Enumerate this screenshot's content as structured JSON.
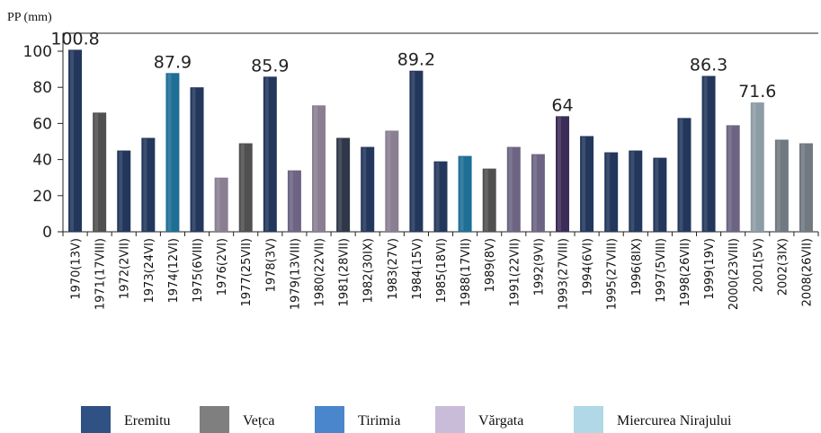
{
  "chart_data": {
    "type": "bar",
    "ylabel": "PP (mm)",
    "ylim": [
      0,
      100
    ],
    "yticks": [
      "0",
      "20",
      "40",
      "60",
      "80",
      "100"
    ],
    "categories": [
      "1970(13V)",
      "1971(17VIII)",
      "1972(2VII)",
      "1973(24VI)",
      "1974(12VI)",
      "1975(6VIII)",
      "1976(2VI)",
      "1977(25VII)",
      "1978(3V)",
      "1979(13VIII)",
      "1980(22VII)",
      "1981(28VII)",
      "1982(30IX)",
      "1983(27V)",
      "1984(15V)",
      "1985(18VI)",
      "1988(17VII)",
      "1989(8V)",
      "1991(22VII)",
      "1992(9VI)",
      "1993(27VIII)",
      "1994(6VI)",
      "1995(27VIII)",
      "1996(8IX)",
      "1997(5VIII)",
      "1998(26VII)",
      "1999(19V)",
      "2000(23VIII)",
      "2001(5V)",
      "2002(3IX)",
      "2008(26VII)"
    ],
    "values": [
      100.8,
      66,
      45,
      52,
      87.9,
      80,
      30,
      49,
      85.9,
      34,
      70,
      52,
      47,
      56,
      89.2,
      39,
      42,
      35,
      47,
      43,
      64,
      53,
      44,
      45,
      41,
      63,
      86.3,
      59,
      71.6,
      51,
      49
    ],
    "bar_colors": [
      "#23375c",
      "#505050",
      "#23375c",
      "#23375c",
      "#1e6e96",
      "#23375c",
      "#8a7e92",
      "#505050",
      "#23375c",
      "#6c6482",
      "#8a7e92",
      "#2f3848",
      "#23375c",
      "#8a7e92",
      "#23375c",
      "#23375c",
      "#1e6e96",
      "#505050",
      "#6c6482",
      "#6c6482",
      "#3c2c58",
      "#23375c",
      "#23375c",
      "#23375c",
      "#23375c",
      "#23375c",
      "#23375c",
      "#6c6482",
      "#8c9ca4",
      "#707880",
      "#707880"
    ],
    "data_labels": [
      {
        "index": 0,
        "text": "100.8"
      },
      {
        "index": 4,
        "text": "87.9"
      },
      {
        "index": 8,
        "text": "85.9"
      },
      {
        "index": 14,
        "text": "89.2"
      },
      {
        "index": 20,
        "text": "64"
      },
      {
        "index": 26,
        "text": "86.3"
      },
      {
        "index": 28,
        "text": "71.6"
      }
    ],
    "legend": {
      "position": "bottom",
      "entries": [
        {
          "name": "Eremitu",
          "color": "#2f5183"
        },
        {
          "name": "Vețca",
          "color": "#7f7f7f"
        },
        {
          "name": "Tirimia",
          "color": "#4a86cc"
        },
        {
          "name": "Vărgata",
          "color": "#c9bcd9"
        },
        {
          "name": "Miercurea Nirajului",
          "color": "#b0d8e6"
        }
      ]
    },
    "grid": false
  }
}
